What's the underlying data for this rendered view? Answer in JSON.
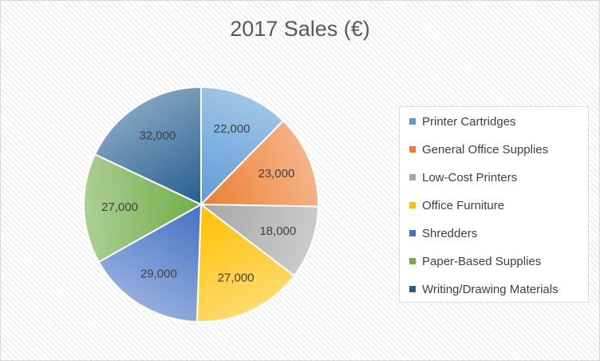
{
  "chart_data": {
    "type": "pie",
    "title": "2017 Sales (€)",
    "categories": [
      "Printer Cartridges",
      "General Office Supplies",
      "Low-Cost Printers",
      "Office Furniture",
      "Shredders",
      "Paper-Based Supplies",
      "Writing/Drawing Materials"
    ],
    "values": [
      22000,
      23000,
      18000,
      27000,
      29000,
      27000,
      32000
    ],
    "data_labels": [
      "22,000",
      "23,000",
      "18,000",
      "27,000",
      "29,000",
      "27,000",
      "32,000"
    ],
    "colors": [
      "#5b9bd5",
      "#ed7d31",
      "#a5a5a5",
      "#ffc000",
      "#4472c4",
      "#70ad47",
      "#255e91"
    ],
    "legend_position": "right",
    "start_angle": "12 o'clock",
    "direction": "clockwise"
  }
}
